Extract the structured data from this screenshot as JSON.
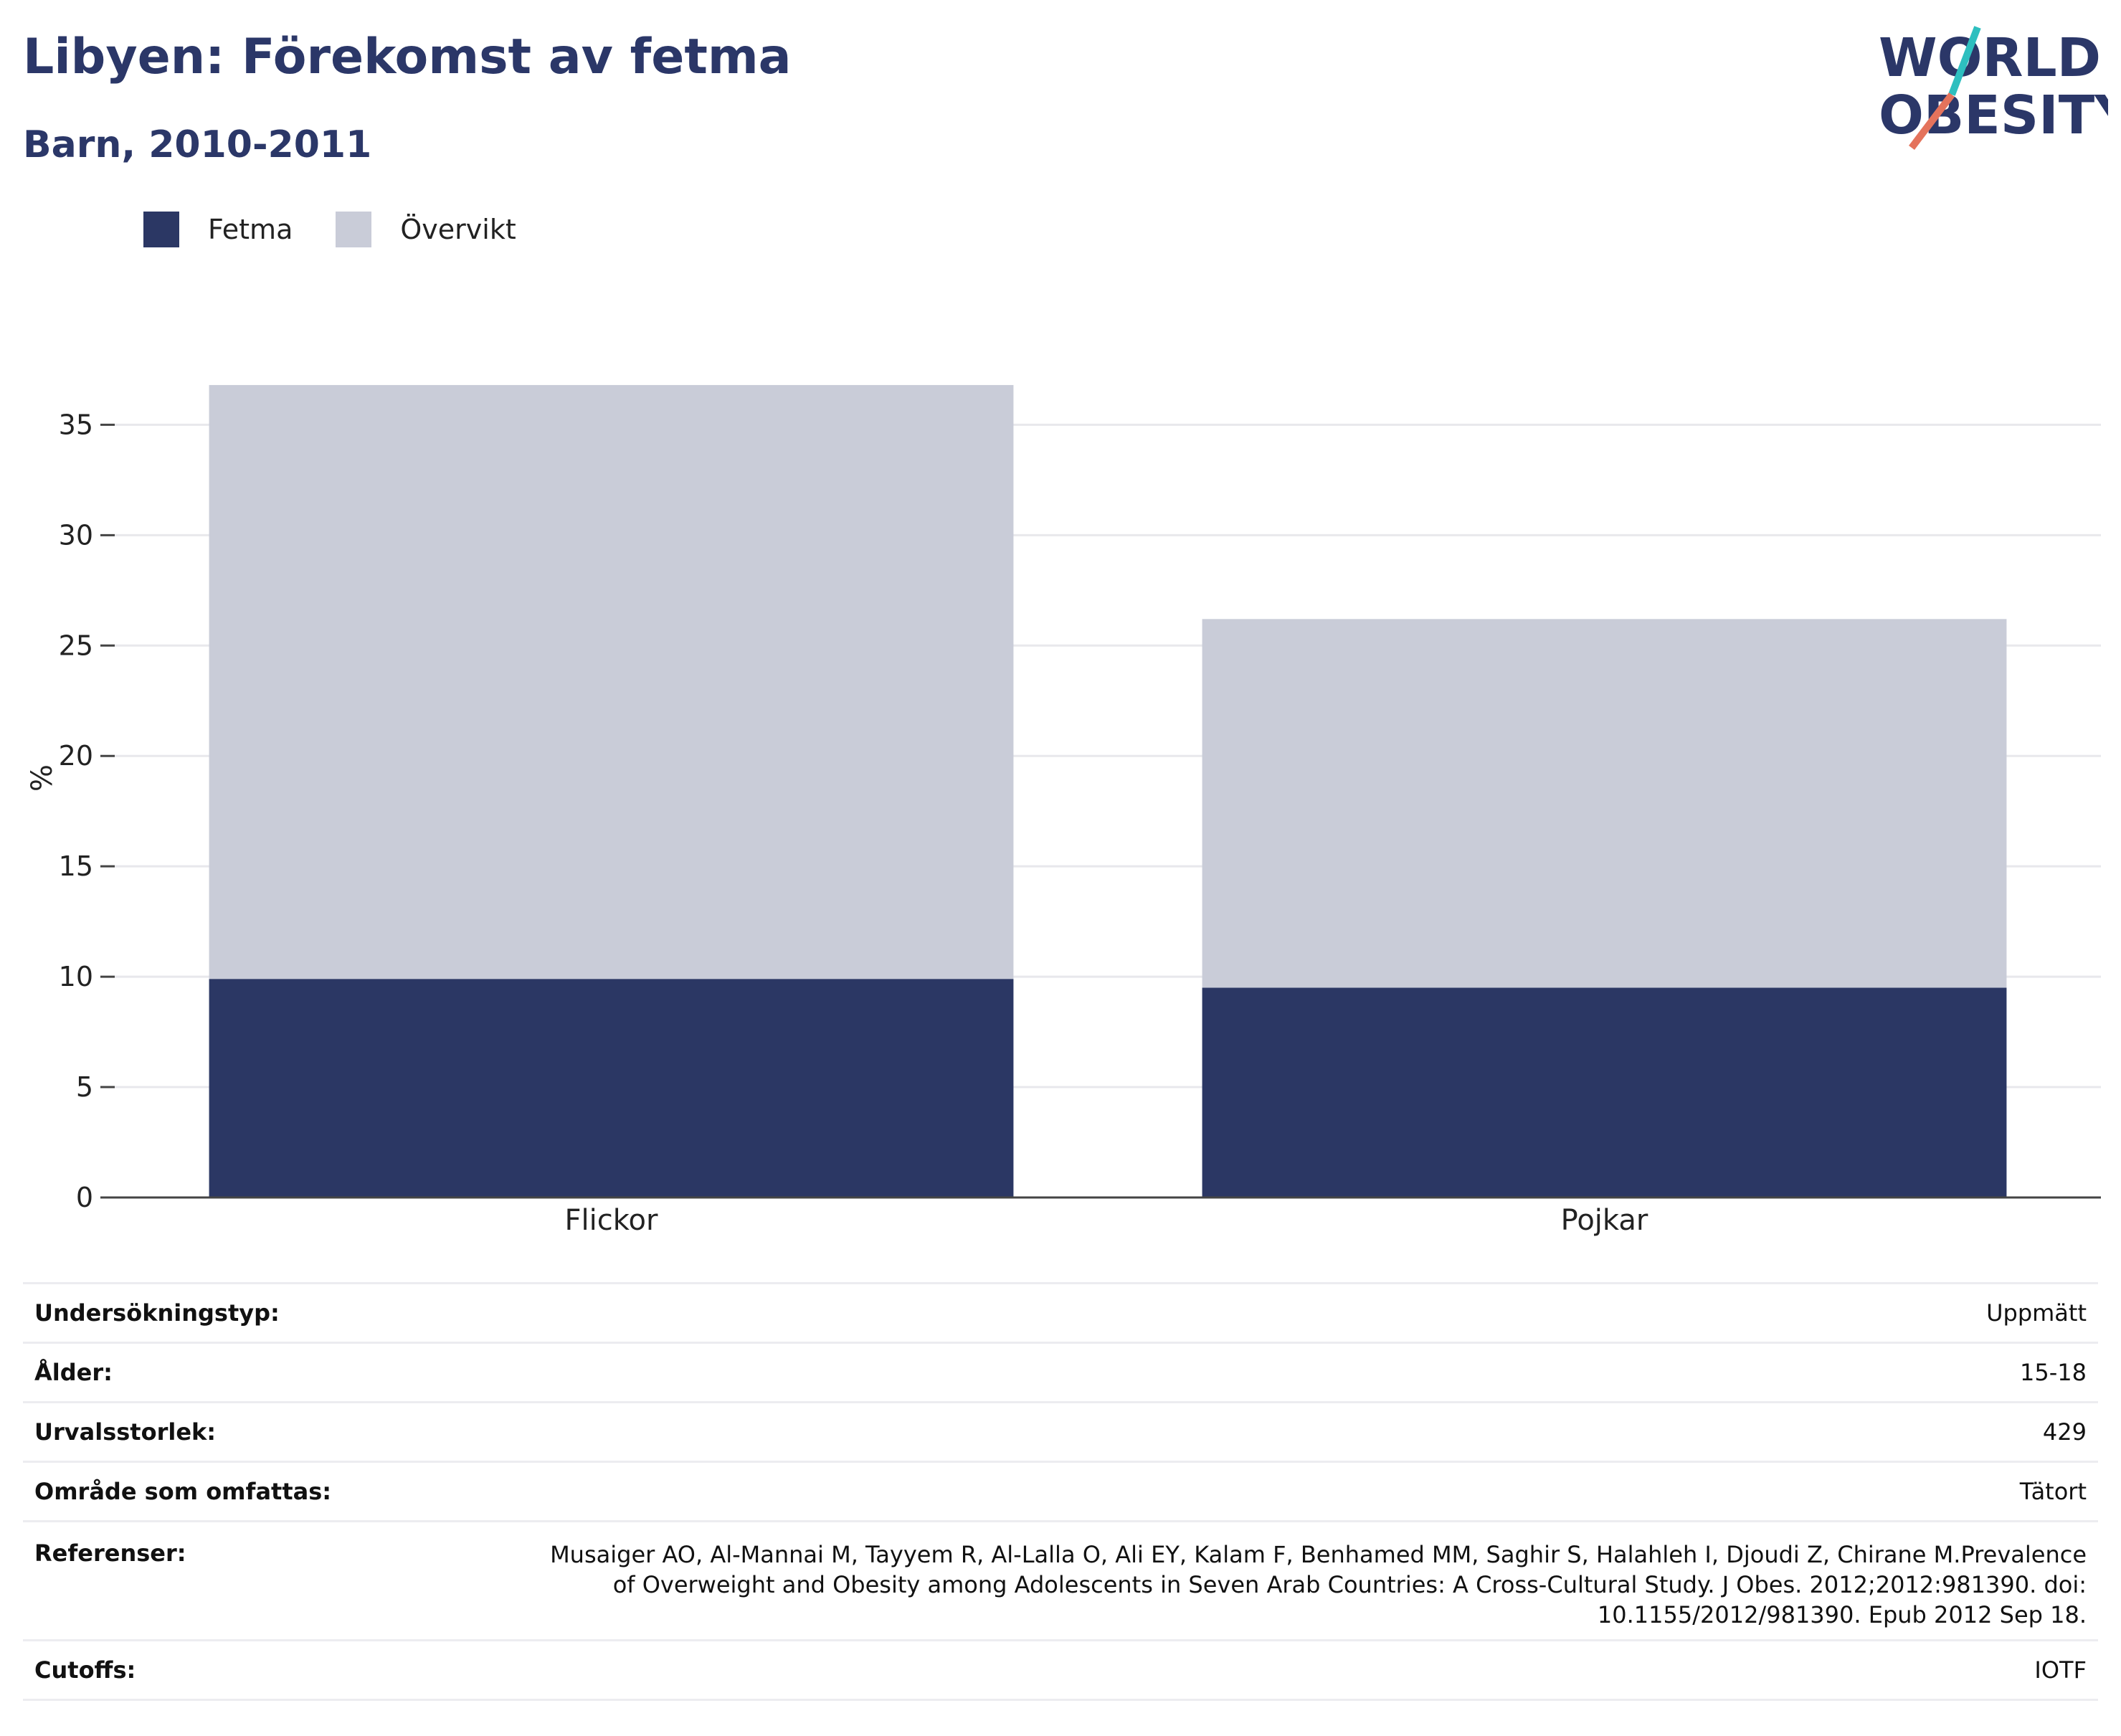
{
  "header": {
    "title": "Libyen: Förekomst av fetma",
    "subtitle": "Barn, 2010-2011"
  },
  "logo": {
    "line1": "WORLD",
    "line2": "OBESITY",
    "accent_teal": "#2ebfbf",
    "accent_coral": "#e4735c"
  },
  "legend": {
    "items": [
      {
        "label": "Fetma",
        "color": "#2b3764"
      },
      {
        "label": "Övervikt",
        "color": "#c9ccd8"
      }
    ]
  },
  "chart_data": {
    "type": "bar",
    "stacked": true,
    "categories": [
      "Flickor",
      "Pojkar"
    ],
    "series": [
      {
        "name": "Fetma",
        "color": "#2b3764",
        "values": [
          9.9,
          9.5
        ]
      },
      {
        "name": "Övervikt",
        "color": "#c9ccd8",
        "values": [
          26.9,
          16.7
        ]
      }
    ],
    "ylabel": "%",
    "ylim": [
      0,
      38
    ],
    "yticks": [
      0,
      5,
      10,
      15,
      20,
      25,
      30,
      35
    ],
    "grid": true,
    "legend_position": "top-left"
  },
  "info": {
    "rows": [
      {
        "key": "Undersökningstyp:",
        "value": "Uppmätt"
      },
      {
        "key": "Ålder:",
        "value": "15-18"
      },
      {
        "key": "Urvalsstorlek:",
        "value": "429"
      },
      {
        "key": "Område som omfattas:",
        "value": "Tätort"
      },
      {
        "key": "Referenser:",
        "value_lines": [
          "Musaiger AO, Al-Mannai M, Tayyem R, Al-Lalla O, Ali EY, Kalam F, Benhamed MM, Saghir S, Halahleh I, Djoudi Z, Chirane M.Prevalence",
          "of Overweight and Obesity among Adolescents in Seven Arab Countries: A Cross-Cultural Study. J Obes. 2012;2012:981390. doi:",
          "10.1155/2012/981390. Epub 2012 Sep 18."
        ]
      },
      {
        "key": "Cutoffs:",
        "value": "IOTF"
      }
    ]
  }
}
